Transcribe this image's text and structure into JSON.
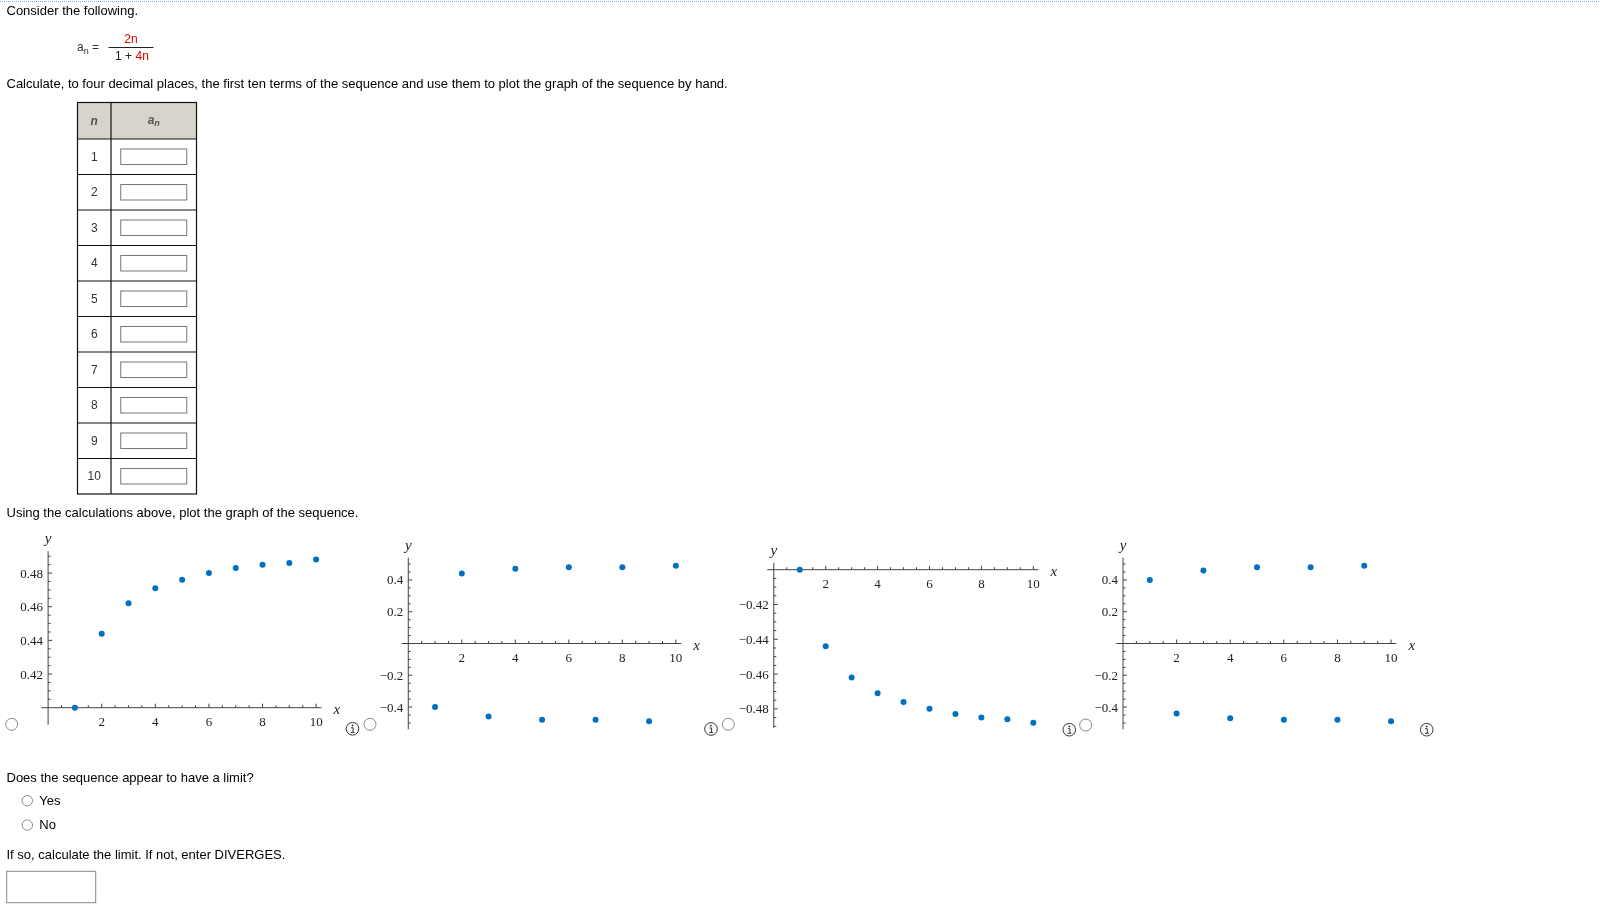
{
  "chart_data": [
    {
      "type": "other",
      "title": "Consider the following.",
      "annotations": [
        "a$_{n}$ =",
        "2n",
        "1 +",
        "4n",
        "Calculate, to four decimal places, the first ten terms of the sequence and use them to plot the graph of the sequence by hand."
      ]
    },
    {
      "type": "heatmap",
      "ylabel": "n",
      "categories": [
        "a$_{n}$"
      ],
      "y_categories": [
        "1",
        "2",
        "3",
        "4",
        "5",
        "6",
        "7",
        "8",
        "9",
        "10"
      ],
      "cells": [
        [
          null
        ],
        [
          null
        ],
        [
          null
        ],
        [
          null
        ],
        [
          null
        ],
        [
          null
        ],
        [
          null
        ],
        [
          null
        ],
        [
          null
        ],
        [
          null
        ]
      ]
    },
    {
      "type": "other",
      "title": "Using the calculations above, plot the graph of the sequence."
    },
    {
      "type": "scatter",
      "xlabel": "x",
      "ylabel": "y",
      "x": [
        1,
        2,
        3,
        4,
        5,
        6,
        7,
        8,
        9,
        10
      ],
      "values": [
        0.4,
        0.444,
        0.462,
        0.471,
        0.476,
        0.48,
        0.483,
        0.485,
        0.486,
        0.488
      ],
      "color": "#0070c0",
      "marker": "circle",
      "xlim": [
        -0.25,
        10.2
      ],
      "ylim": [
        0.4,
        0.493
      ],
      "xticks": [
        {
          "value": 0.5,
          "label": null
        },
        {
          "value": 1,
          "label": null
        },
        {
          "value": 1.5,
          "label": null
        },
        2,
        {
          "value": 2.5,
          "label": null
        },
        {
          "value": 3,
          "label": null
        },
        {
          "value": 3.5,
          "label": null
        },
        4,
        {
          "value": 4.5,
          "label": null
        },
        {
          "value": 5,
          "label": null
        },
        {
          "value": 5.5,
          "label": null
        },
        6,
        {
          "value": 6.5,
          "label": null
        },
        {
          "value": 7,
          "label": null
        },
        {
          "value": 7.5,
          "label": null
        },
        8,
        {
          "value": 8.5,
          "label": null
        },
        {
          "value": 9,
          "label": null
        },
        {
          "value": 9.5,
          "label": null
        },
        10
      ],
      "yticks": [
        {
          "value": 0.405,
          "label": null
        },
        {
          "value": 0.41,
          "label": null
        },
        {
          "value": 0.415,
          "label": null
        },
        0.42,
        {
          "value": 0.425,
          "label": null
        },
        {
          "value": 0.43,
          "label": null
        },
        {
          "value": 0.435,
          "label": null
        },
        0.44,
        {
          "value": 0.445,
          "label": null
        },
        {
          "value": 0.45,
          "label": null
        },
        {
          "value": 0.455,
          "label": null
        },
        0.46,
        {
          "value": 0.465,
          "label": null
        },
        {
          "value": 0.47,
          "label": null
        },
        {
          "value": 0.475,
          "label": null
        },
        0.48,
        {
          "value": 0.485,
          "label": null
        },
        {
          "value": 0.49,
          "label": null
        }
      ]
    },
    {
      "type": "scatter",
      "xlabel": "x",
      "ylabel": "y",
      "x": [
        1,
        2,
        3,
        4,
        5,
        6,
        7,
        8,
        9,
        10
      ],
      "values": [
        -0.4,
        0.44,
        -0.46,
        0.47,
        -0.48,
        0.48,
        -0.48,
        0.48,
        -0.49,
        0.49
      ],
      "color": "#0070c0",
      "marker": "circle",
      "xlim": [
        -0.25,
        10.2
      ],
      "ylim": [
        -0.54,
        0.54
      ],
      "xticks": [
        {
          "value": 0.5,
          "label": null
        },
        {
          "value": 1,
          "label": null
        },
        {
          "value": 1.5,
          "label": null
        },
        2,
        {
          "value": 2.5,
          "label": null
        },
        {
          "value": 3,
          "label": null
        },
        {
          "value": 3.5,
          "label": null
        },
        4,
        {
          "value": 4.5,
          "label": null
        },
        {
          "value": 5,
          "label": null
        },
        {
          "value": 5.5,
          "label": null
        },
        6,
        {
          "value": 6.5,
          "label": null
        },
        {
          "value": 7,
          "label": null
        },
        {
          "value": 7.5,
          "label": null
        },
        8,
        {
          "value": 8.5,
          "label": null
        },
        {
          "value": 9,
          "label": null
        },
        {
          "value": 9.5,
          "label": null
        },
        10
      ],
      "yticks": [
        {
          "value": -0.5,
          "label": null
        },
        {
          "value": -0.45,
          "label": null
        },
        {
          "value": -0.4,
          "label": "−0.4"
        },
        {
          "value": -0.35,
          "label": null
        },
        {
          "value": -0.3,
          "label": null
        },
        {
          "value": -0.25,
          "label": null
        },
        {
          "value": -0.2,
          "label": "−0.2"
        },
        {
          "value": -0.15,
          "label": null
        },
        {
          "value": -0.1,
          "label": null
        },
        {
          "value": -0.05,
          "label": null
        },
        {
          "value": 0.05,
          "label": null
        },
        {
          "value": 0.1,
          "label": null
        },
        {
          "value": 0.15,
          "label": null
        },
        0.2,
        {
          "value": 0.25,
          "label": null
        },
        {
          "value": 0.3,
          "label": null
        },
        {
          "value": 0.35,
          "label": null
        },
        0.4,
        {
          "value": 0.45,
          "label": null
        },
        {
          "value": 0.5,
          "label": null
        }
      ]
    },
    {
      "type": "scatter",
      "xlabel": "x",
      "ylabel": "y",
      "x": [
        1,
        2,
        3,
        4,
        5,
        6,
        7,
        8,
        9,
        10
      ],
      "values": [
        -0.4,
        -0.444,
        -0.462,
        -0.471,
        -0.476,
        -0.48,
        -0.483,
        -0.485,
        -0.486,
        -0.488
      ],
      "color": "#0070c0",
      "marker": "circle",
      "xlim": [
        -0.25,
        10.2
      ],
      "ylim": [
        -0.491,
        -0.4
      ],
      "xticks": [
        {
          "value": 0.5,
          "label": null
        },
        {
          "value": 1,
          "label": null
        },
        {
          "value": 1.5,
          "label": null
        },
        2,
        {
          "value": 2.5,
          "label": null
        },
        {
          "value": 3,
          "label": null
        },
        {
          "value": 3.5,
          "label": null
        },
        4,
        {
          "value": 4.5,
          "label": null
        },
        {
          "value": 5,
          "label": null
        },
        {
          "value": 5.5,
          "label": null
        },
        6,
        {
          "value": 6.5,
          "label": null
        },
        {
          "value": 7,
          "label": null
        },
        {
          "value": 7.5,
          "label": null
        },
        8,
        {
          "value": 8.5,
          "label": null
        },
        {
          "value": 9,
          "label": null
        },
        {
          "value": 9.5,
          "label": null
        },
        10
      ],
      "yticks": [
        {
          "value": -0.49,
          "label": null
        },
        {
          "value": -0.485,
          "label": null
        },
        {
          "value": -0.48,
          "label": "−0.48"
        },
        {
          "value": -0.475,
          "label": null
        },
        {
          "value": -0.47,
          "label": null
        },
        {
          "value": -0.465,
          "label": null
        },
        {
          "value": -0.46,
          "label": "−0.46"
        },
        {
          "value": -0.455,
          "label": null
        },
        {
          "value": -0.45,
          "label": null
        },
        {
          "value": -0.445,
          "label": null
        },
        {
          "value": -0.44,
          "label": "−0.44"
        },
        {
          "value": -0.435,
          "label": null
        },
        {
          "value": -0.43,
          "label": null
        },
        {
          "value": -0.425,
          "label": null
        },
        {
          "value": -0.42,
          "label": "−0.42"
        },
        {
          "value": -0.415,
          "label": null
        },
        {
          "value": -0.41,
          "label": null
        },
        {
          "value": -0.405,
          "label": null
        }
      ]
    },
    {
      "type": "scatter",
      "xlabel": "x",
      "ylabel": "y",
      "x": [
        1,
        2,
        3,
        4,
        5,
        6,
        7,
        8,
        9,
        10
      ],
      "values": [
        0.4,
        -0.44,
        0.46,
        -0.47,
        0.48,
        -0.48,
        0.48,
        -0.48,
        0.49,
        -0.49
      ],
      "color": "#0070c0",
      "marker": "circle",
      "xlim": [
        -0.25,
        10.2
      ],
      "ylim": [
        -0.54,
        0.54
      ],
      "xticks": [
        {
          "value": 0.5,
          "label": null
        },
        {
          "value": 1,
          "label": null
        },
        {
          "value": 1.5,
          "label": null
        },
        2,
        {
          "value": 2.5,
          "label": null
        },
        {
          "value": 3,
          "label": null
        },
        {
          "value": 3.5,
          "label": null
        },
        4,
        {
          "value": 4.5,
          "label": null
        },
        {
          "value": 5,
          "label": null
        },
        {
          "value": 5.5,
          "label": null
        },
        6,
        {
          "value": 6.5,
          "label": null
        },
        {
          "value": 7,
          "label": null
        },
        {
          "value": 7.5,
          "label": null
        },
        8,
        {
          "value": 8.5,
          "label": null
        },
        {
          "value": 9,
          "label": null
        },
        {
          "value": 9.5,
          "label": null
        },
        10
      ],
      "yticks": [
        {
          "value": -0.5,
          "label": null
        },
        {
          "value": -0.45,
          "label": null
        },
        {
          "value": -0.4,
          "label": "−0.4"
        },
        {
          "value": -0.35,
          "label": null
        },
        {
          "value": -0.3,
          "label": null
        },
        {
          "value": -0.25,
          "label": null
        },
        {
          "value": -0.2,
          "label": "−0.2"
        },
        {
          "value": -0.15,
          "label": null
        },
        {
          "value": -0.1,
          "label": null
        },
        {
          "value": -0.05,
          "label": null
        },
        {
          "value": 0.05,
          "label": null
        },
        {
          "value": 0.1,
          "label": null
        },
        {
          "value": 0.15,
          "label": null
        },
        0.2,
        {
          "value": 0.25,
          "label": null
        },
        {
          "value": 0.3,
          "label": null
        },
        {
          "value": 0.35,
          "label": null
        },
        0.4,
        {
          "value": 0.45,
          "label": null
        },
        {
          "value": 0.5,
          "label": null
        }
      ]
    },
    {
      "type": "other",
      "title": "Does the sequence appear to have a limit?",
      "annotations": [
        "Yes",
        "No",
        "If so, calculate the limit. If not, enter DIVERGES."
      ]
    }
  ]
}
